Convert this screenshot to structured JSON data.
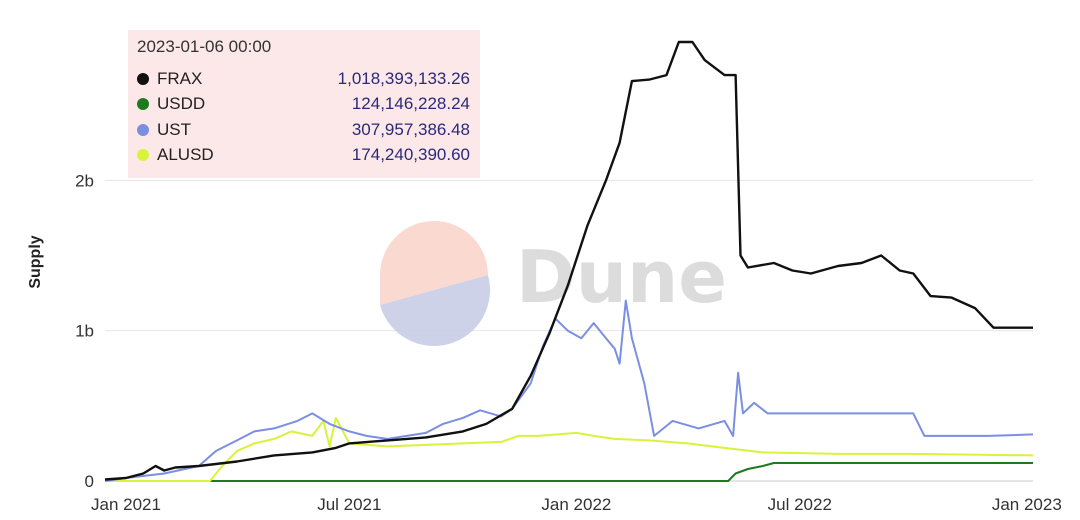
{
  "watermark": {
    "text": "Dune"
  },
  "tooltip": {
    "date": "2023-01-06 00:00",
    "rows": [
      {
        "name": "FRAX",
        "value": "1,018,393,133.26",
        "color": "#111111"
      },
      {
        "name": "USDD",
        "value": "124,146,228.24",
        "color": "#1f7a1f"
      },
      {
        "name": "UST",
        "value": "307,957,386.48",
        "color": "#7b8fe0"
      },
      {
        "name": "ALUSD",
        "value": "174,240,390.60",
        "color": "#d9f23a"
      }
    ]
  },
  "chart_data": {
    "type": "line",
    "title": "",
    "xlabel": "",
    "ylabel": "Supply",
    "xlim": [
      "2020-12-15",
      "2023-01-06"
    ],
    "ylim": [
      0,
      3000000000
    ],
    "x_ticks": [
      {
        "date": "2021-01-01",
        "label": "Jan 2021"
      },
      {
        "date": "2021-07-01",
        "label": "Jul 2021"
      },
      {
        "date": "2022-01-01",
        "label": "Jan 2022"
      },
      {
        "date": "2022-07-01",
        "label": "Jul 2022"
      },
      {
        "date": "2023-01-01",
        "label": "Jan 2023"
      }
    ],
    "y_ticks": [
      {
        "value": 0,
        "label": "0"
      },
      {
        "value": 1000000000,
        "label": "1b"
      },
      {
        "value": 2000000000,
        "label": "2b"
      }
    ],
    "grid": true,
    "legend": "tooltip top-left",
    "series": [
      {
        "name": "FRAX",
        "color": "#111111",
        "points": [
          [
            "2020-12-15",
            0.01
          ],
          [
            "2021-01-01",
            0.02
          ],
          [
            "2021-01-15",
            0.05
          ],
          [
            "2021-01-25",
            0.1
          ],
          [
            "2021-02-01",
            0.07
          ],
          [
            "2021-02-10",
            0.09
          ],
          [
            "2021-03-01",
            0.1
          ],
          [
            "2021-04-01",
            0.13
          ],
          [
            "2021-05-01",
            0.17
          ],
          [
            "2021-06-01",
            0.19
          ],
          [
            "2021-06-20",
            0.22
          ],
          [
            "2021-07-01",
            0.25
          ],
          [
            "2021-08-01",
            0.27
          ],
          [
            "2021-09-01",
            0.29
          ],
          [
            "2021-10-01",
            0.33
          ],
          [
            "2021-10-20",
            0.38
          ],
          [
            "2021-11-10",
            0.48
          ],
          [
            "2021-11-25",
            0.7
          ],
          [
            "2021-12-10",
            0.98
          ],
          [
            "2021-12-25",
            1.3
          ],
          [
            "2022-01-10",
            1.7
          ],
          [
            "2022-01-25",
            2.0
          ],
          [
            "2022-02-05",
            2.25
          ],
          [
            "2022-02-15",
            2.66
          ],
          [
            "2022-03-01",
            2.67
          ],
          [
            "2022-03-15",
            2.7
          ],
          [
            "2022-03-25",
            2.92
          ],
          [
            "2022-04-05",
            2.92
          ],
          [
            "2022-04-15",
            2.8
          ],
          [
            "2022-05-01",
            2.7
          ],
          [
            "2022-05-10",
            2.7
          ],
          [
            "2022-05-14",
            1.5
          ],
          [
            "2022-05-20",
            1.42
          ],
          [
            "2022-06-10",
            1.45
          ],
          [
            "2022-06-25",
            1.4
          ],
          [
            "2022-07-10",
            1.38
          ],
          [
            "2022-08-01",
            1.43
          ],
          [
            "2022-08-20",
            1.45
          ],
          [
            "2022-09-05",
            1.5
          ],
          [
            "2022-09-20",
            1.4
          ],
          [
            "2022-10-01",
            1.38
          ],
          [
            "2022-10-15",
            1.23
          ],
          [
            "2022-11-01",
            1.22
          ],
          [
            "2022-11-20",
            1.15
          ],
          [
            "2022-12-05",
            1.02
          ],
          [
            "2023-01-06",
            1.02
          ]
        ]
      },
      {
        "name": "USDD",
        "color": "#1f7a1f",
        "points": [
          [
            "2020-12-15",
            0.0
          ],
          [
            "2022-05-04",
            0.0
          ],
          [
            "2022-05-10",
            0.05
          ],
          [
            "2022-05-20",
            0.08
          ],
          [
            "2022-06-01",
            0.1
          ],
          [
            "2022-06-10",
            0.12
          ],
          [
            "2023-01-06",
            0.12
          ]
        ]
      },
      {
        "name": "UST",
        "color": "#7b8fe0",
        "points": [
          [
            "2020-12-15",
            0.0
          ],
          [
            "2021-01-01",
            0.02
          ],
          [
            "2021-02-01",
            0.05
          ],
          [
            "2021-03-01",
            0.1
          ],
          [
            "2021-03-15",
            0.2
          ],
          [
            "2021-04-01",
            0.27
          ],
          [
            "2021-04-15",
            0.33
          ],
          [
            "2021-05-01",
            0.35
          ],
          [
            "2021-05-20",
            0.4
          ],
          [
            "2021-06-01",
            0.45
          ],
          [
            "2021-06-15",
            0.38
          ],
          [
            "2021-07-01",
            0.33
          ],
          [
            "2021-07-15",
            0.3
          ],
          [
            "2021-08-01",
            0.28
          ],
          [
            "2021-09-01",
            0.32
          ],
          [
            "2021-09-15",
            0.38
          ],
          [
            "2021-10-01",
            0.42
          ],
          [
            "2021-10-15",
            0.47
          ],
          [
            "2021-11-01",
            0.43
          ],
          [
            "2021-11-10",
            0.48
          ],
          [
            "2021-11-25",
            0.65
          ],
          [
            "2021-12-05",
            0.9
          ],
          [
            "2021-12-15",
            1.08
          ],
          [
            "2021-12-25",
            1.0
          ],
          [
            "2022-01-05",
            0.95
          ],
          [
            "2022-01-15",
            1.05
          ],
          [
            "2022-01-25",
            0.95
          ],
          [
            "2022-02-01",
            0.88
          ],
          [
            "2022-02-05",
            0.78
          ],
          [
            "2022-02-10",
            1.2
          ],
          [
            "2022-02-15",
            0.95
          ],
          [
            "2022-02-25",
            0.65
          ],
          [
            "2022-03-05",
            0.3
          ],
          [
            "2022-03-20",
            0.4
          ],
          [
            "2022-04-10",
            0.35
          ],
          [
            "2022-05-01",
            0.4
          ],
          [
            "2022-05-08",
            0.3
          ],
          [
            "2022-05-12",
            0.72
          ],
          [
            "2022-05-16",
            0.45
          ],
          [
            "2022-05-25",
            0.52
          ],
          [
            "2022-06-05",
            0.45
          ],
          [
            "2022-07-01",
            0.45
          ],
          [
            "2022-08-01",
            0.45
          ],
          [
            "2022-09-01",
            0.45
          ],
          [
            "2022-10-01",
            0.45
          ],
          [
            "2022-10-10",
            0.3
          ],
          [
            "2022-12-01",
            0.3
          ],
          [
            "2023-01-06",
            0.31
          ]
        ]
      },
      {
        "name": "ALUSD",
        "color": "#d9f23a",
        "points": [
          [
            "2020-12-15",
            0.0
          ],
          [
            "2021-03-10",
            0.0
          ],
          [
            "2021-03-20",
            0.1
          ],
          [
            "2021-04-01",
            0.2
          ],
          [
            "2021-04-15",
            0.25
          ],
          [
            "2021-05-01",
            0.28
          ],
          [
            "2021-05-15",
            0.33
          ],
          [
            "2021-06-01",
            0.3
          ],
          [
            "2021-06-10",
            0.4
          ],
          [
            "2021-06-15",
            0.23
          ],
          [
            "2021-06-20",
            0.42
          ],
          [
            "2021-07-01",
            0.25
          ],
          [
            "2021-08-01",
            0.23
          ],
          [
            "2021-09-01",
            0.24
          ],
          [
            "2021-10-01",
            0.25
          ],
          [
            "2021-11-01",
            0.26
          ],
          [
            "2021-11-15",
            0.3
          ],
          [
            "2021-12-01",
            0.3
          ],
          [
            "2022-01-01",
            0.32
          ],
          [
            "2022-01-15",
            0.3
          ],
          [
            "2022-02-01",
            0.28
          ],
          [
            "2022-03-01",
            0.27
          ],
          [
            "2022-04-01",
            0.25
          ],
          [
            "2022-05-01",
            0.22
          ],
          [
            "2022-06-01",
            0.19
          ],
          [
            "2022-08-01",
            0.18
          ],
          [
            "2022-10-01",
            0.18
          ],
          [
            "2023-01-06",
            0.17
          ]
        ]
      }
    ]
  }
}
